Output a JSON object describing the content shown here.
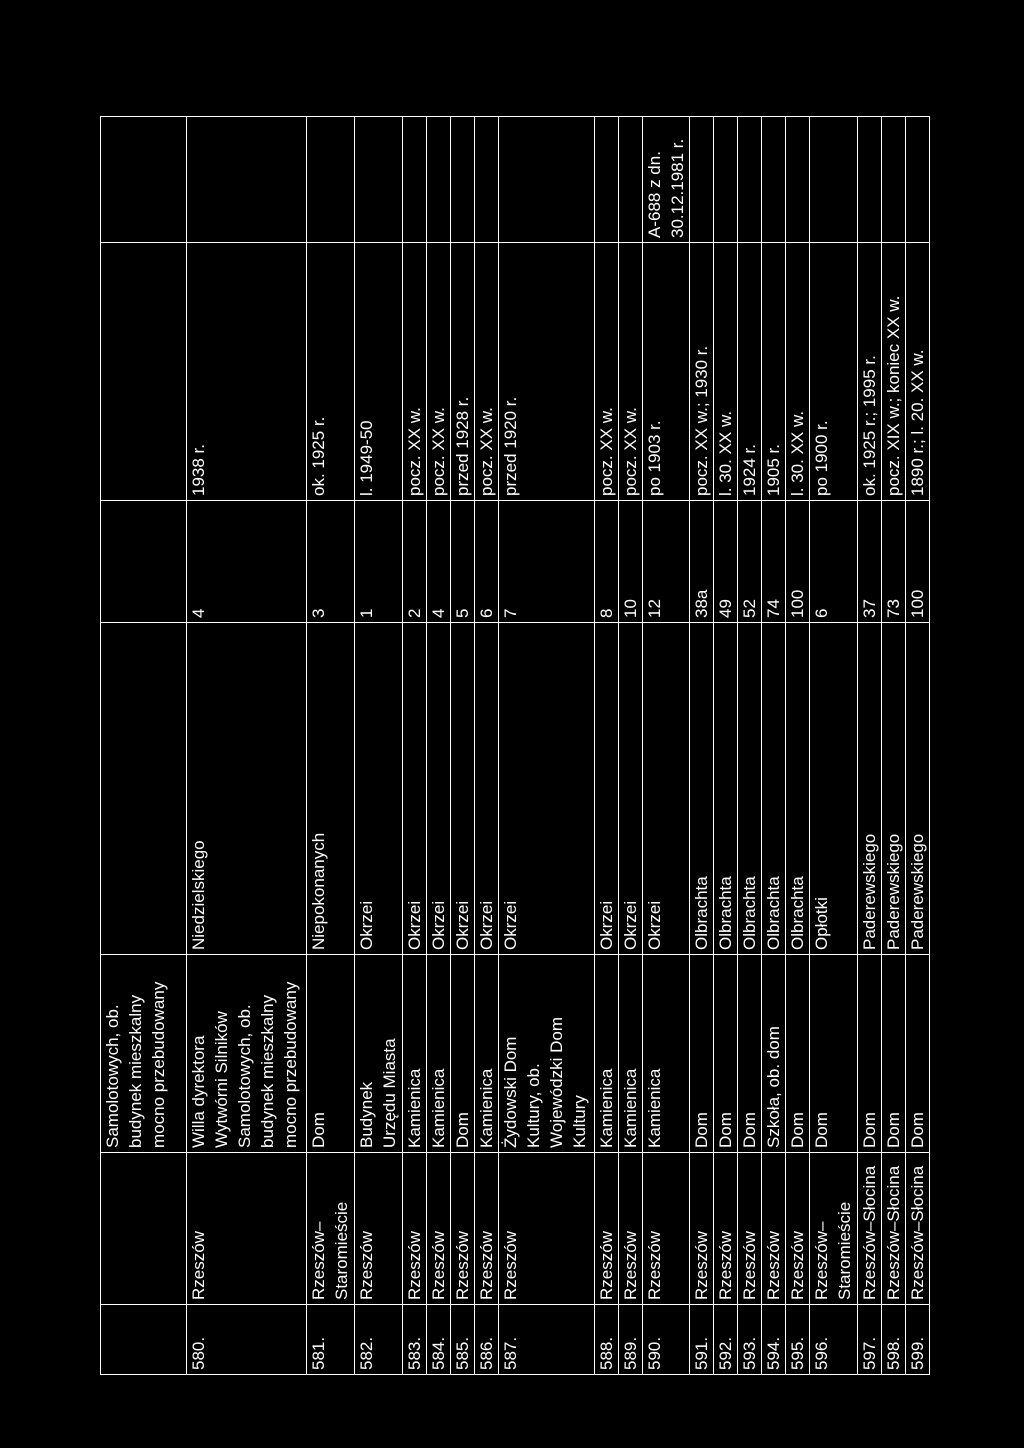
{
  "rows": [
    {
      "no": "",
      "town": "",
      "object": "Samolotowych, ob.\nbudynek mieszkalny\nmocno przebudowany",
      "street": "",
      "number": "",
      "date": "",
      "register": ""
    },
    {
      "no": "580.",
      "town": "Rzeszów",
      "object": "Willa dyrektora\nWytwórni Silników\nSamolotowych, ob.\nbudynek mieszkalny\nmocno przebudowany",
      "street": "Niedzielskiego",
      "number": "4",
      "date": "1938 r.",
      "register": ""
    },
    {
      "no": "581.",
      "town": "Rzeszów–\nStaromieście",
      "object": "Dom",
      "street": "Niepokonanych",
      "number": "3",
      "date": "ok. 1925 r.",
      "register": ""
    },
    {
      "no": "582.",
      "town": "Rzeszów",
      "object": "Budynek\nUrzędu Miasta",
      "street": "Okrzei",
      "number": "1",
      "date": "l. 1949-50",
      "register": ""
    },
    {
      "no": "583.",
      "town": "Rzeszów",
      "object": "Kamienica",
      "street": "Okrzei",
      "number": "2",
      "date": "pocz. XX w.",
      "register": ""
    },
    {
      "no": "584.",
      "town": "Rzeszów",
      "object": "Kamienica",
      "street": "Okrzei",
      "number": "4",
      "date": "pocz. XX w.",
      "register": ""
    },
    {
      "no": "585.",
      "town": "Rzeszów",
      "object": "Dom",
      "street": "Okrzei",
      "number": "5",
      "date": "przed 1928 r.",
      "register": ""
    },
    {
      "no": "586.",
      "town": "Rzeszów",
      "object": "Kamienica",
      "street": "Okrzei",
      "number": "6",
      "date": "pocz. XX w.",
      "register": ""
    },
    {
      "no": "587.",
      "town": "Rzeszów",
      "object": "Żydowski Dom\nKultury, ob.\nWojewódzki Dom\nKultury",
      "street": "Okrzei",
      "number": "7",
      "date": "przed 1920 r.",
      "register": ""
    },
    {
      "no": "588.",
      "town": "Rzeszów",
      "object": "Kamienica",
      "street": "Okrzei",
      "number": "8",
      "date": "pocz. XX w.",
      "register": ""
    },
    {
      "no": "589.",
      "town": "Rzeszów",
      "object": "Kamienica",
      "street": "Okrzei",
      "number": "10",
      "date": "pocz. XX w.",
      "register": ""
    },
    {
      "no": "590.",
      "town": "Rzeszów",
      "object": "Kamienica",
      "street": "Okrzei",
      "number": "12",
      "date": "po 1903 r.",
      "register": "A-688 z dn.\n30.12.1981 r."
    },
    {
      "no": "591.",
      "town": "Rzeszów",
      "object": "Dom",
      "street": "Olbrachta",
      "number": "38a",
      "date": "pocz. XX w.; 1930 r.",
      "register": ""
    },
    {
      "no": "592.",
      "town": "Rzeszów",
      "object": "Dom",
      "street": "Olbrachta",
      "number": "49",
      "date": "l. 30. XX w.",
      "register": ""
    },
    {
      "no": "593.",
      "town": "Rzeszów",
      "object": "Dom",
      "street": "Olbrachta",
      "number": "52",
      "date": "1924 r.",
      "register": ""
    },
    {
      "no": "594.",
      "town": "Rzeszów",
      "object": "Szkoła, ob. dom",
      "street": "Olbrachta",
      "number": "74",
      "date": "1905 r.",
      "register": ""
    },
    {
      "no": "595.",
      "town": "Rzeszów",
      "object": "Dom",
      "street": "Olbrachta",
      "number": "100",
      "date": "l. 30. XX w.",
      "register": ""
    },
    {
      "no": "596.",
      "town": "Rzeszów–\nStaromieście",
      "object": "Dom",
      "street": "Opłotki",
      "number": "6",
      "date": "po 1900 r.",
      "register": ""
    },
    {
      "no": "597.",
      "town": "Rzeszów–Słocina",
      "object": "Dom",
      "street": "Paderewskiego",
      "number": "37",
      "date": "ok. 1925 r.; 1995 r.",
      "register": ""
    },
    {
      "no": "598.",
      "town": "Rzeszów–Słocina",
      "object": "Dom",
      "street": "Paderewskiego",
      "number": "73",
      "date": "pocz. XIX w.; koniec XX w.",
      "register": ""
    },
    {
      "no": "599.",
      "town": "Rzeszów–Słocina",
      "object": "Dom",
      "street": "Paderewskiego",
      "number": "100",
      "date": "1890 r.; l. 20. XX w.",
      "register": ""
    }
  ]
}
